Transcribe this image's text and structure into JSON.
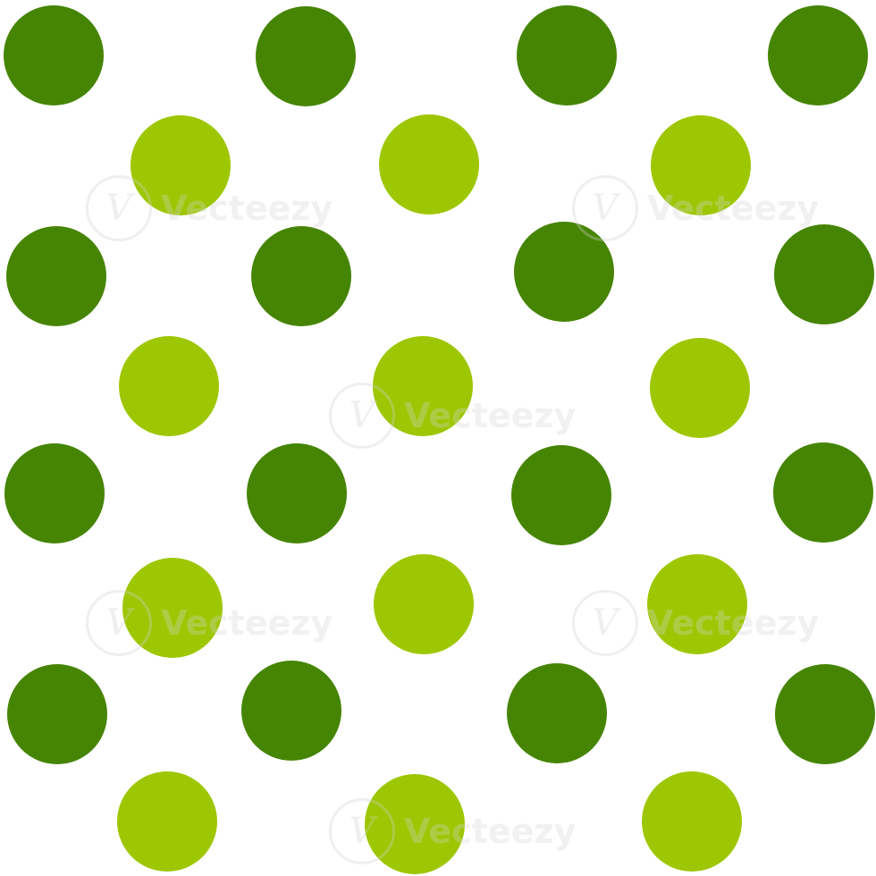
{
  "pattern": {
    "background_color": "#ffffff",
    "dark_dot_color": "#458503",
    "light_dot_color": "#9dc702"
  },
  "watermark": {
    "logo_letter": "V",
    "text": "Vecteezy"
  }
}
